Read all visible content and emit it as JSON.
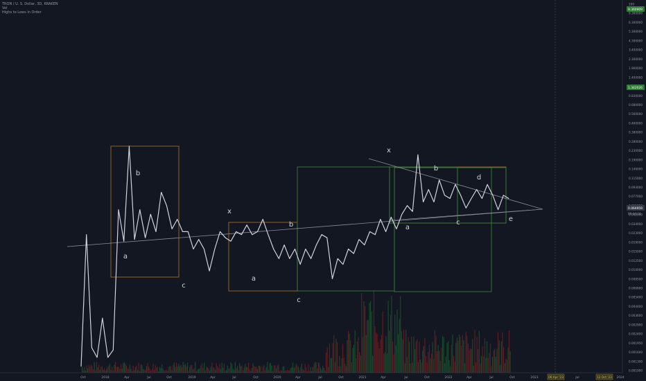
{
  "header": {
    "symbol_line": "TRON / U. S. Dollar, 3D, KRAKEN",
    "vol_label": "Vol",
    "indicator_label": "Highs to Lows in Order"
  },
  "colors": {
    "background": "#131722",
    "price_line": "#d1d4dc",
    "trend_line": "#8a8e99",
    "box_orange": "#9c6b2e",
    "box_green": "#3a7a3a",
    "annotation": "#d1d4dc",
    "badge_green": "#2e7d32",
    "vol_red": "#7a2326",
    "vol_green": "#1e5e33"
  },
  "chart_data": {
    "type": "line",
    "title": "TRON / U. S. Dollar, 3D, KRAKEN",
    "y_scale": "log",
    "x_ticks": [
      "Oct",
      "2018",
      "Apr",
      "Jul",
      "Oct",
      "2019",
      "Apr",
      "Jul",
      "Oct",
      "2020",
      "Apr",
      "Jul",
      "Oct",
      "2021",
      "Apr",
      "Jul",
      "Oct",
      "2022",
      "Apr",
      "Jul",
      "Oct",
      "2023",
      "Jul",
      "2024"
    ],
    "x_badges": [
      "06 Apr '23",
      "12 Oct '23"
    ],
    "y_ticks": [
      "100",
      "9.360000",
      "6.300000",
      "5.300000",
      "4.300000",
      "3.400000",
      "2.300000",
      "1.900000",
      "1.400000",
      "1.000000",
      "0.830000",
      "0.680000",
      "0.560000",
      "0.460000",
      "0.380000",
      "0.280000",
      "0.230000",
      "0.190000",
      "0.140000",
      "0.115000",
      "0.093000",
      "0.077000",
      "0.051000",
      "0.042000",
      "0.034000",
      "0.023000",
      "0.019000",
      "0.015000",
      "0.012500",
      "0.010000",
      "0.008500",
      "0.006600",
      "0.005400",
      "0.004400",
      "0.003600",
      "0.002900",
      "0.002400",
      "0.001950",
      "0.001600",
      "0.001300",
      "0.001000"
    ],
    "badges": [
      {
        "label": "9.360909"
      },
      {
        "label": "1.342026"
      },
      {
        "label": "0.064959"
      }
    ],
    "annotations": [
      "b",
      "a",
      "c",
      "x",
      "b",
      "a",
      "c",
      "x",
      "b",
      "a",
      "c",
      "d",
      "e"
    ],
    "series": [
      {
        "x": [
          0,
          1,
          2,
          3,
          4,
          5,
          6,
          7,
          8,
          9,
          10,
          11,
          12,
          13,
          14,
          15,
          16,
          17,
          18,
          19,
          20,
          21,
          22,
          23,
          24,
          25,
          26,
          27,
          28,
          29,
          30,
          31,
          32,
          33,
          34,
          35,
          36,
          37,
          38,
          39,
          40,
          41,
          42,
          43,
          44,
          45,
          46,
          47,
          48,
          49,
          50,
          51,
          52,
          53,
          54,
          55,
          56,
          57,
          58,
          59,
          60,
          61,
          62,
          63,
          64,
          65,
          66,
          67,
          68,
          69,
          70,
          71,
          72,
          73,
          74,
          75,
          76,
          77,
          78,
          79,
          80
        ],
        "y": [
          0.0013,
          0.028,
          0.002,
          0.0016,
          0.004,
          0.0016,
          0.0019,
          0.05,
          0.024,
          0.22,
          0.025,
          0.05,
          0.026,
          0.045,
          0.03,
          0.075,
          0.055,
          0.032,
          0.04,
          0.03,
          0.03,
          0.02,
          0.025,
          0.02,
          0.012,
          0.02,
          0.03,
          0.026,
          0.024,
          0.03,
          0.028,
          0.035,
          0.028,
          0.03,
          0.04,
          0.028,
          0.02,
          0.016,
          0.022,
          0.016,
          0.02,
          0.014,
          0.02,
          0.016,
          0.022,
          0.028,
          0.026,
          0.01,
          0.016,
          0.014,
          0.02,
          0.018,
          0.025,
          0.022,
          0.03,
          0.028,
          0.04,
          0.03,
          0.042,
          0.032,
          0.045,
          0.055,
          0.048,
          0.18,
          0.06,
          0.08,
          0.06,
          0.1,
          0.07,
          0.065,
          0.09,
          0.07,
          0.052,
          0.065,
          0.08,
          0.065,
          0.09,
          0.07,
          0.05,
          0.07,
          0.065
        ]
      }
    ]
  }
}
